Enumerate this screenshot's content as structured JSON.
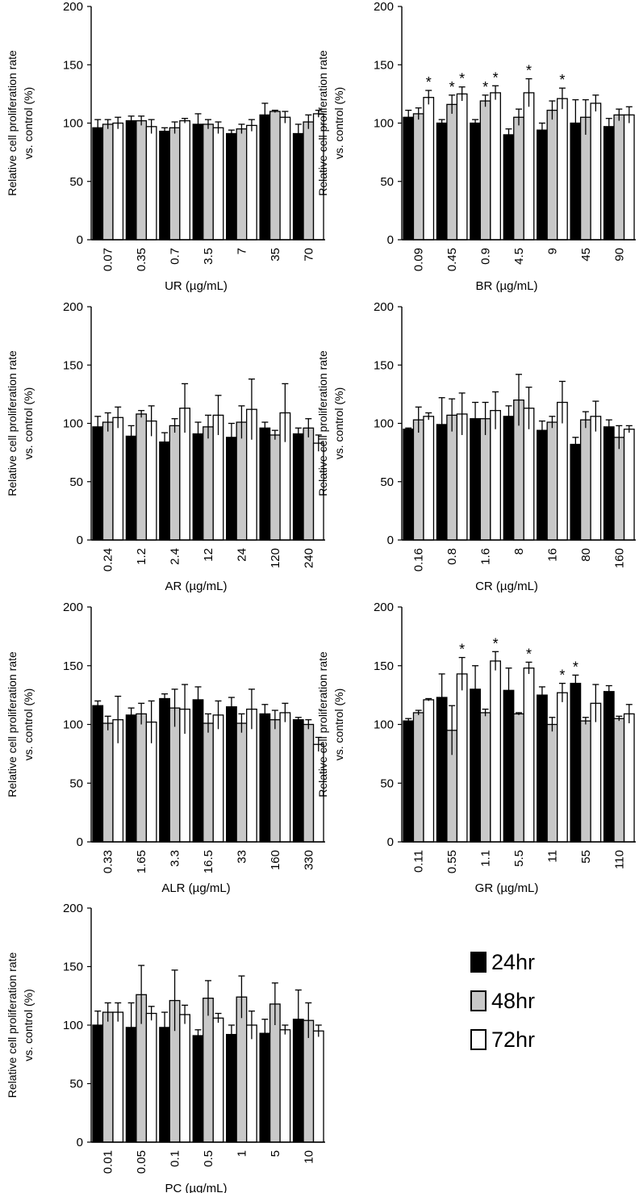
{
  "y_axis_label_line1": "Relative cell proliferation rate",
  "y_axis_label_line2": "vs. control (%)",
  "series_colors": {
    "24hr": "#000000",
    "48hr": "#c8c8c8",
    "72hr": "#ffffff"
  },
  "legend": [
    {
      "label": "24hr",
      "color": "#000000"
    },
    {
      "label": "48hr",
      "color": "#c8c8c8"
    },
    {
      "label": "72hr",
      "color": "#ffffff"
    }
  ],
  "chart_data": [
    {
      "type": "bar",
      "xlabel": "UR (µg/mL)",
      "ylabel": "Relative cell proliferation rate vs. control (%)",
      "ylim": [
        0,
        200
      ],
      "yticks": [
        "0",
        "50",
        "100",
        "150",
        "200"
      ],
      "categories": [
        "0.07",
        "0.35",
        "0.7",
        "3.5",
        "7",
        "35",
        "70"
      ],
      "series": [
        {
          "name": "24hr",
          "values": [
            96,
            102,
            93,
            99,
            91,
            107,
            91
          ],
          "errors": [
            7,
            4,
            3,
            9,
            3,
            10,
            8
          ]
        },
        {
          "name": "48hr",
          "values": [
            99,
            102,
            96,
            99,
            95,
            110,
            101
          ],
          "errors": [
            4,
            4,
            5,
            4,
            4,
            1,
            6
          ]
        },
        {
          "name": "72hr",
          "values": [
            100,
            97,
            102,
            96,
            98,
            105,
            108
          ],
          "errors": [
            5,
            6,
            2,
            5,
            5,
            5,
            3
          ]
        }
      ],
      "significance": []
    },
    {
      "type": "bar",
      "xlabel": "BR (µg/mL)",
      "ylabel": "Relative cell proliferation rate vs. control (%)",
      "ylim": [
        0,
        200
      ],
      "yticks": [
        "0",
        "50",
        "100",
        "150",
        "200"
      ],
      "categories": [
        "0.09",
        "0.45",
        "0.9",
        "4.5",
        "9",
        "45",
        "90"
      ],
      "series": [
        {
          "name": "24hr",
          "values": [
            105,
            100,
            100,
            90,
            94,
            100,
            97
          ],
          "errors": [
            6,
            3,
            3,
            5,
            6,
            20,
            7
          ]
        },
        {
          "name": "48hr",
          "values": [
            108,
            116,
            119,
            105,
            111,
            105,
            107
          ],
          "errors": [
            5,
            8,
            5,
            7,
            8,
            15,
            5
          ]
        },
        {
          "name": "72hr",
          "values": [
            122,
            125,
            126,
            126,
            121,
            117,
            107
          ],
          "errors": [
            6,
            6,
            6,
            12,
            9,
            7,
            7
          ]
        }
      ],
      "significance": [
        {
          "category": "0.09",
          "series": "72hr",
          "label": "*"
        },
        {
          "category": "0.45",
          "series": "48hr",
          "label": "*"
        },
        {
          "category": "0.45",
          "series": "72hr",
          "label": "*"
        },
        {
          "category": "0.9",
          "series": "48hr",
          "label": "*"
        },
        {
          "category": "0.9",
          "series": "72hr",
          "label": "*"
        },
        {
          "category": "4.5",
          "series": "72hr",
          "label": "*"
        },
        {
          "category": "9",
          "series": "72hr",
          "label": "*"
        }
      ]
    },
    {
      "type": "bar",
      "xlabel": "AR (µg/mL)",
      "ylabel": "Relative cell proliferation rate vs. control (%)",
      "ylim": [
        0,
        200
      ],
      "yticks": [
        "0",
        "50",
        "100",
        "150",
        "200"
      ],
      "categories": [
        "0.24",
        "1.2",
        "2.4",
        "12",
        "24",
        "120",
        "240"
      ],
      "series": [
        {
          "name": "24hr",
          "values": [
            97,
            89,
            84,
            91,
            88,
            96,
            91
          ],
          "errors": [
            9,
            9,
            8,
            10,
            12,
            5,
            5
          ]
        },
        {
          "name": "48hr",
          "values": [
            101,
            108,
            98,
            97,
            101,
            90,
            96
          ],
          "errors": [
            8,
            3,
            6,
            10,
            14,
            4,
            8
          ]
        },
        {
          "name": "72hr",
          "values": [
            105,
            102,
            113,
            107,
            112,
            109,
            83
          ],
          "errors": [
            9,
            13,
            21,
            17,
            26,
            25,
            7
          ]
        }
      ],
      "significance": []
    },
    {
      "type": "bar",
      "xlabel": "CR (µg/mL)",
      "ylabel": "Relative cell proliferation rate vs. control (%)",
      "ylim": [
        0,
        200
      ],
      "yticks": [
        "0",
        "50",
        "100",
        "150",
        "200"
      ],
      "categories": [
        "0.16",
        "0.8",
        "1.6",
        "8",
        "16",
        "80",
        "160"
      ],
      "series": [
        {
          "name": "24hr",
          "values": [
            95,
            99,
            104,
            106,
            94,
            82,
            97
          ],
          "errors": [
            1,
            23,
            14,
            9,
            8,
            6,
            6
          ]
        },
        {
          "name": "48hr",
          "values": [
            103,
            107,
            104,
            120,
            101,
            103,
            88
          ],
          "errors": [
            11,
            14,
            14,
            22,
            5,
            7,
            10
          ]
        },
        {
          "name": "72hr",
          "values": [
            106,
            108,
            111,
            113,
            118,
            106,
            95
          ],
          "errors": [
            3,
            18,
            16,
            18,
            18,
            13,
            3
          ]
        }
      ],
      "significance": []
    },
    {
      "type": "bar",
      "xlabel": "ALR (µg/mL)",
      "ylabel": "Relative cell proliferation rate vs. control (%)",
      "ylim": [
        0,
        200
      ],
      "yticks": [
        "0",
        "50",
        "100",
        "150",
        "200"
      ],
      "categories": [
        "0.33",
        "1.65",
        "3.3",
        "16.5",
        "33",
        "160",
        "330"
      ],
      "series": [
        {
          "name": "24hr",
          "values": [
            116,
            108,
            122,
            121,
            115,
            109,
            104
          ],
          "errors": [
            4,
            6,
            4,
            11,
            8,
            8,
            2
          ]
        },
        {
          "name": "48hr",
          "values": [
            101,
            109,
            114,
            101,
            101,
            104,
            100
          ],
          "errors": [
            6,
            9,
            16,
            8,
            8,
            8,
            4
          ]
        },
        {
          "name": "72hr",
          "values": [
            104,
            102,
            113,
            108,
            113,
            110,
            83
          ],
          "errors": [
            20,
            18,
            21,
            12,
            17,
            8,
            6
          ]
        }
      ],
      "significance": []
    },
    {
      "type": "bar",
      "xlabel": "GR (µg/mL)",
      "ylabel": "Relative cell proliferation rate vs. control (%)",
      "ylim": [
        0,
        200
      ],
      "yticks": [
        "0",
        "50",
        "100",
        "150",
        "200"
      ],
      "categories": [
        "0.11",
        "0.55",
        "1.1",
        "5.5",
        "11",
        "55",
        "110"
      ],
      "series": [
        {
          "name": "24hr",
          "values": [
            103,
            123,
            130,
            129,
            125,
            135,
            128
          ],
          "errors": [
            2,
            20,
            20,
            19,
            7,
            7,
            5
          ]
        },
        {
          "name": "48hr",
          "values": [
            110,
            95,
            110,
            109,
            100,
            103,
            105
          ],
          "errors": [
            2,
            21,
            3,
            1,
            6,
            3,
            2
          ]
        },
        {
          "name": "72hr",
          "values": [
            121,
            143,
            154,
            148,
            127,
            118,
            109
          ],
          "errors": [
            1,
            14,
            8,
            5,
            8,
            16,
            8
          ]
        }
      ],
      "significance": [
        {
          "category": "0.55",
          "series": "72hr",
          "label": "*"
        },
        {
          "category": "1.1",
          "series": "72hr",
          "label": "*"
        },
        {
          "category": "5.5",
          "series": "72hr",
          "label": "*"
        },
        {
          "category": "11",
          "series": "72hr",
          "label": "*"
        },
        {
          "category": "55",
          "series": "24hr",
          "label": "*"
        }
      ]
    },
    {
      "type": "bar",
      "xlabel": "PC (µg/mL)",
      "ylabel": "Relative cell proliferation rate vs. control (%)",
      "ylim": [
        0,
        200
      ],
      "yticks": [
        "0",
        "50",
        "100",
        "150",
        "200"
      ],
      "categories": [
        "0.01",
        "0.05",
        "0.1",
        "0.5",
        "1",
        "5",
        "10"
      ],
      "series": [
        {
          "name": "24hr",
          "values": [
            100,
            98,
            98,
            91,
            92,
            93,
            105
          ],
          "errors": [
            12,
            21,
            13,
            5,
            8,
            12,
            25
          ]
        },
        {
          "name": "48hr",
          "values": [
            111,
            126,
            121,
            123,
            124,
            118,
            104
          ],
          "errors": [
            8,
            25,
            26,
            15,
            18,
            18,
            15
          ]
        },
        {
          "name": "72hr",
          "values": [
            111,
            110,
            109,
            106,
            100,
            96,
            95
          ],
          "errors": [
            8,
            6,
            8,
            4,
            12,
            4,
            5
          ]
        }
      ],
      "significance": []
    }
  ]
}
